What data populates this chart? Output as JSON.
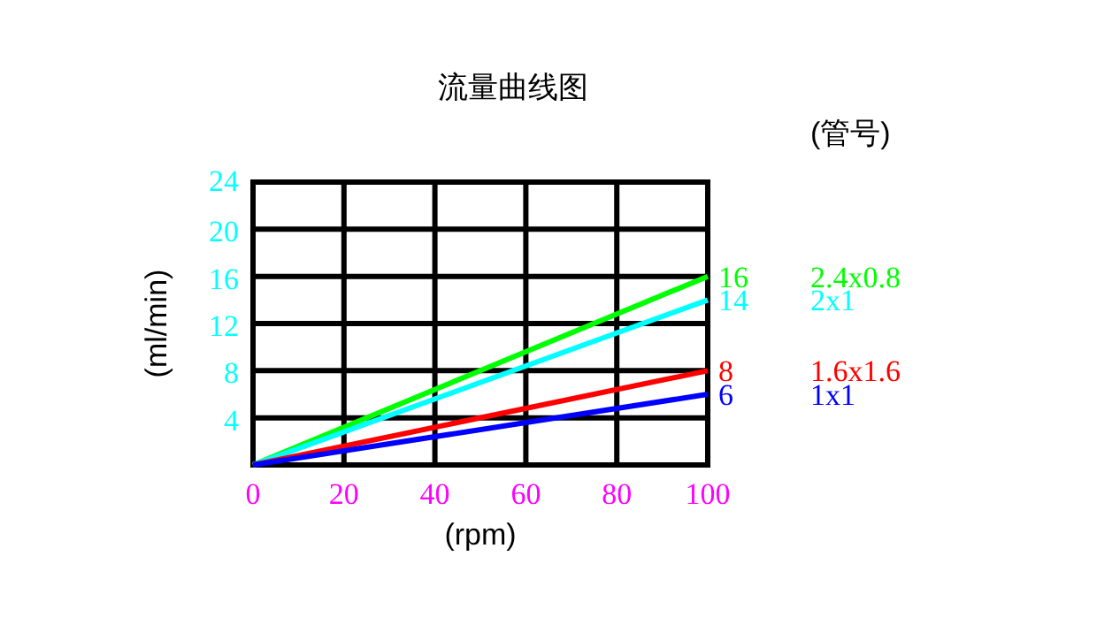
{
  "chart_data": {
    "type": "line",
    "title": "流量曲线图",
    "xlabel": "(rpm)",
    "ylabel": "(ml/min)",
    "legend_title": "(管号)",
    "xlim": [
      0,
      100
    ],
    "xticks": [
      0,
      20,
      40,
      60,
      80,
      100
    ],
    "ylim": [
      0,
      24
    ],
    "yticks": [
      {
        "value": 0,
        "label": null
      },
      4,
      8,
      12,
      16,
      20,
      24
    ],
    "grid": true,
    "legend": "right",
    "marker": "none",
    "line_style": "solid",
    "x": [
      0,
      100
    ],
    "series": [
      {
        "name": "2.4x0.8",
        "color": "#00ff00",
        "values": [
          0,
          16
        ],
        "value_labels": [
          null,
          "16"
        ]
      },
      {
        "name": "2x1",
        "color": "#00ffff",
        "values": [
          0,
          14
        ],
        "value_labels": [
          null,
          "14"
        ]
      },
      {
        "name": "1.6x1.6",
        "color": "#ff0000",
        "values": [
          0,
          8
        ],
        "value_labels": [
          null,
          "8"
        ]
      },
      {
        "name": "1x1",
        "color": "#0000ff",
        "values": [
          0,
          6
        ],
        "value_labels": [
          null,
          "6"
        ]
      }
    ]
  }
}
